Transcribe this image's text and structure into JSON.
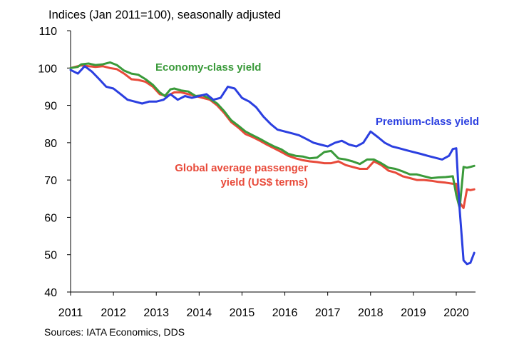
{
  "chart_data": {
    "type": "line",
    "subtitle": "Indices (Jan 2011=100), seasonally adjusted",
    "source": "Sources: IATA Economics, DDS",
    "ylim": [
      40,
      110
    ],
    "yticks": [
      40,
      50,
      60,
      70,
      80,
      90,
      100,
      110
    ],
    "xlim": [
      2011,
      2020.5
    ],
    "xticks": [
      2011,
      2012,
      2013,
      2014,
      2015,
      2016,
      2017,
      2018,
      2019,
      2020
    ],
    "grid": false,
    "legend": "inline labels",
    "series": [
      {
        "name": "Economy-class yield",
        "label_lines": [
          "Economy-class yield"
        ],
        "color": "#3a9a3a",
        "x": [
          2011.0,
          2011.17,
          2011.25,
          2011.42,
          2011.58,
          2011.75,
          2011.92,
          2012.08,
          2012.25,
          2012.42,
          2012.58,
          2012.75,
          2012.92,
          2013.08,
          2013.2,
          2013.33,
          2013.42,
          2013.58,
          2013.75,
          2013.92,
          2014.08,
          2014.25,
          2014.42,
          2014.58,
          2014.75,
          2014.92,
          2015.08,
          2015.25,
          2015.42,
          2015.58,
          2015.75,
          2015.92,
          2016.08,
          2016.25,
          2016.42,
          2016.58,
          2016.75,
          2016.92,
          2017.08,
          2017.25,
          2017.42,
          2017.58,
          2017.75,
          2017.92,
          2018.08,
          2018.25,
          2018.42,
          2018.58,
          2018.75,
          2018.92,
          2019.08,
          2019.25,
          2019.42,
          2019.58,
          2019.75,
          2019.92,
          2020.0,
          2020.08,
          2020.17,
          2020.25,
          2020.33,
          2020.42
        ],
        "values": [
          100.0,
          100.3,
          101.0,
          101.2,
          100.8,
          101.0,
          101.5,
          100.8,
          99.3,
          98.5,
          98.2,
          97.0,
          95.5,
          93.5,
          92.5,
          94.3,
          94.5,
          94.0,
          93.7,
          92.5,
          92.7,
          91.8,
          90.5,
          88.5,
          86.0,
          84.5,
          83.0,
          82.0,
          81.0,
          80.0,
          79.0,
          78.2,
          77.0,
          76.5,
          76.3,
          75.8,
          76.0,
          77.5,
          77.8,
          75.8,
          75.5,
          75.0,
          74.3,
          75.5,
          75.5,
          74.5,
          73.3,
          73.0,
          72.3,
          71.5,
          71.5,
          71.0,
          70.5,
          70.7,
          70.8,
          71.0,
          66.0,
          62.5,
          73.5,
          73.3,
          73.5,
          73.8
        ]
      },
      {
        "name": "Premium-class yield",
        "label_lines": [
          "Premium-class yield"
        ],
        "color": "#2b3fe0",
        "x": [
          2011.0,
          2011.17,
          2011.33,
          2011.5,
          2011.67,
          2011.83,
          2012.0,
          2012.17,
          2012.33,
          2012.5,
          2012.67,
          2012.83,
          2013.0,
          2013.17,
          2013.33,
          2013.5,
          2013.67,
          2013.83,
          2014.0,
          2014.17,
          2014.33,
          2014.5,
          2014.67,
          2014.83,
          2015.0,
          2015.17,
          2015.33,
          2015.5,
          2015.67,
          2015.83,
          2016.0,
          2016.17,
          2016.33,
          2016.5,
          2016.67,
          2016.83,
          2017.0,
          2017.17,
          2017.33,
          2017.5,
          2017.67,
          2017.83,
          2018.0,
          2018.17,
          2018.33,
          2018.5,
          2018.67,
          2018.83,
          2019.0,
          2019.17,
          2019.33,
          2019.5,
          2019.67,
          2019.83,
          2019.92,
          2020.0,
          2020.08,
          2020.17,
          2020.25,
          2020.33,
          2020.42
        ],
        "values": [
          99.5,
          98.5,
          100.5,
          99.0,
          97.0,
          95.0,
          94.5,
          93.0,
          91.5,
          91.0,
          90.5,
          91.0,
          91.0,
          91.5,
          93.0,
          91.5,
          92.5,
          92.0,
          92.5,
          93.0,
          91.5,
          92.0,
          95.0,
          94.5,
          92.0,
          91.0,
          89.5,
          87.0,
          85.0,
          83.5,
          83.0,
          82.5,
          82.0,
          81.0,
          80.0,
          79.5,
          79.0,
          80.0,
          80.5,
          79.5,
          79.0,
          80.0,
          83.0,
          81.5,
          80.0,
          79.0,
          78.5,
          78.0,
          77.5,
          77.0,
          76.5,
          76.0,
          75.5,
          76.5,
          78.3,
          78.5,
          62.0,
          48.5,
          47.5,
          47.8,
          50.5
        ]
      },
      {
        "name": "Global average passenger yield (US$ terms)",
        "label_lines": [
          "Global average passenger",
          "yield (US$ terms)"
        ],
        "color": "#e84a3a",
        "x": [
          2011.0,
          2011.17,
          2011.25,
          2011.42,
          2011.58,
          2011.75,
          2011.92,
          2012.08,
          2012.25,
          2012.42,
          2012.58,
          2012.75,
          2012.92,
          2013.08,
          2013.25,
          2013.42,
          2013.58,
          2013.75,
          2013.92,
          2014.08,
          2014.25,
          2014.42,
          2014.58,
          2014.75,
          2014.92,
          2015.08,
          2015.25,
          2015.42,
          2015.58,
          2015.75,
          2015.92,
          2016.08,
          2016.25,
          2016.42,
          2016.58,
          2016.75,
          2016.92,
          2017.08,
          2017.25,
          2017.42,
          2017.58,
          2017.75,
          2017.92,
          2018.08,
          2018.25,
          2018.42,
          2018.58,
          2018.75,
          2018.92,
          2019.08,
          2019.25,
          2019.42,
          2019.58,
          2019.75,
          2019.92,
          2020.0,
          2020.08,
          2020.17,
          2020.25,
          2020.33,
          2020.42
        ],
        "values": [
          100.0,
          100.5,
          100.7,
          100.5,
          100.3,
          100.5,
          100.0,
          99.7,
          98.5,
          97.0,
          96.8,
          96.3,
          95.0,
          93.0,
          92.5,
          93.5,
          93.5,
          93.0,
          92.5,
          92.0,
          91.5,
          90.0,
          88.0,
          85.5,
          84.0,
          82.3,
          81.5,
          80.5,
          79.5,
          78.5,
          77.5,
          76.5,
          75.8,
          75.3,
          75.0,
          74.8,
          74.5,
          74.5,
          75.0,
          74.0,
          73.5,
          73.0,
          73.0,
          75.0,
          74.0,
          72.5,
          72.0,
          71.0,
          70.5,
          70.0,
          70.0,
          69.8,
          69.5,
          69.3,
          69.0,
          69.0,
          64.0,
          62.5,
          67.5,
          67.3,
          67.5
        ]
      }
    ]
  }
}
